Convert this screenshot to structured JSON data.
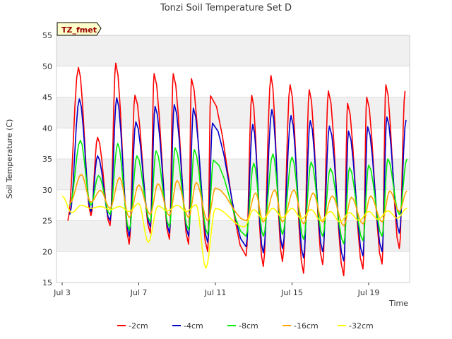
{
  "chart_data": {
    "type": "line",
    "title": "Tonzi Soil Temperature Set D",
    "xlabel": "Time",
    "ylabel": "Soil Temperature (C)",
    "ylim": [
      15,
      55
    ],
    "yticks": [
      15,
      20,
      25,
      30,
      35,
      40,
      45,
      50,
      55
    ],
    "xlim_days": [
      3,
      21
    ],
    "xticks": [
      {
        "label": "Jul 3",
        "day": 3
      },
      {
        "label": "Jul 7",
        "day": 7
      },
      {
        "label": "Jul 11",
        "day": 11
      },
      {
        "label": "Jul 15",
        "day": 15
      },
      {
        "label": "Jul 19",
        "day": 19
      }
    ],
    "grid": "horizontal bands",
    "legend_placement": "bottom",
    "annotation": "TZ_fmet",
    "series": [
      {
        "name": "-2cm",
        "color": "#ff0000",
        "peaks": [
          [
            3.85,
            49.8
          ],
          [
            4.85,
            38.5
          ],
          [
            5.8,
            50.5
          ],
          [
            6.8,
            45.3
          ],
          [
            7.8,
            48.8
          ],
          [
            8.8,
            48.8
          ],
          [
            9.75,
            48.0
          ],
          [
            10.75,
            45.2
          ],
          [
            12.9,
            45.3
          ],
          [
            13.9,
            48.5
          ],
          [
            14.9,
            47.0
          ],
          [
            15.9,
            46.2
          ],
          [
            16.9,
            46.0
          ],
          [
            17.9,
            44.0
          ],
          [
            18.9,
            45.0
          ],
          [
            19.9,
            47.0
          ],
          [
            20.9,
            46.0
          ]
        ],
        "troughs": [
          [
            3.3,
            25.0
          ],
          [
            4.5,
            25.8
          ],
          [
            5.5,
            24.2
          ],
          [
            6.5,
            21.2
          ],
          [
            7.6,
            23.0
          ],
          [
            8.6,
            22.0
          ],
          [
            9.6,
            21.2
          ],
          [
            10.6,
            20.0
          ],
          [
            12.6,
            19.3
          ],
          [
            13.5,
            17.6
          ],
          [
            14.5,
            18.4
          ],
          [
            15.6,
            16.5
          ],
          [
            16.6,
            17.9
          ],
          [
            17.7,
            16.1
          ],
          [
            18.7,
            17.2
          ],
          [
            19.7,
            18.0
          ],
          [
            20.6,
            20.5
          ]
        ]
      },
      {
        "name": "-4cm",
        "color": "#0000cc",
        "peaks": [
          [
            3.9,
            44.7
          ],
          [
            4.85,
            35.5
          ],
          [
            5.85,
            44.9
          ],
          [
            6.85,
            41.0
          ],
          [
            7.85,
            43.5
          ],
          [
            8.85,
            43.8
          ],
          [
            9.85,
            43.2
          ],
          [
            10.85,
            40.8
          ],
          [
            12.95,
            40.6
          ],
          [
            13.95,
            43.0
          ],
          [
            14.95,
            42.0
          ],
          [
            15.95,
            41.2
          ],
          [
            16.95,
            40.3
          ],
          [
            17.95,
            39.5
          ],
          [
            18.95,
            40.2
          ],
          [
            19.95,
            41.8
          ],
          [
            20.95,
            41.3
          ]
        ],
        "troughs": [
          [
            3.4,
            26.0
          ],
          [
            4.5,
            26.5
          ],
          [
            5.5,
            25.0
          ],
          [
            6.5,
            22.5
          ],
          [
            7.6,
            24.0
          ],
          [
            8.6,
            23.0
          ],
          [
            9.6,
            22.5
          ],
          [
            10.6,
            21.5
          ],
          [
            12.6,
            20.8
          ],
          [
            13.5,
            19.8
          ],
          [
            14.5,
            20.5
          ],
          [
            15.6,
            19.0
          ],
          [
            16.6,
            20.0
          ],
          [
            17.7,
            18.5
          ],
          [
            18.7,
            19.3
          ],
          [
            19.7,
            20.0
          ],
          [
            20.6,
            23.0
          ]
        ]
      },
      {
        "name": "-8cm",
        "color": "#00ee00",
        "peaks": [
          [
            3.95,
            38.0
          ],
          [
            4.9,
            32.3
          ],
          [
            5.9,
            37.5
          ],
          [
            6.9,
            35.5
          ],
          [
            7.9,
            36.3
          ],
          [
            8.9,
            36.8
          ],
          [
            9.9,
            36.5
          ],
          [
            10.9,
            34.8
          ],
          [
            13.0,
            34.3
          ],
          [
            14.0,
            35.8
          ],
          [
            15.0,
            35.3
          ],
          [
            16.0,
            34.5
          ],
          [
            17.0,
            33.5
          ],
          [
            18.0,
            33.6
          ],
          [
            19.0,
            34.0
          ],
          [
            20.0,
            35.0
          ],
          [
            21.0,
            35.0
          ]
        ],
        "troughs": [
          [
            3.4,
            27.5
          ],
          [
            4.5,
            27.5
          ],
          [
            5.5,
            26.0
          ],
          [
            6.5,
            23.5
          ],
          [
            7.6,
            24.8
          ],
          [
            8.6,
            24.0
          ],
          [
            9.6,
            23.5
          ],
          [
            10.6,
            22.8
          ],
          [
            12.6,
            22.5
          ],
          [
            13.5,
            22.5
          ],
          [
            14.5,
            22.8
          ],
          [
            15.6,
            22.0
          ],
          [
            16.6,
            22.5
          ],
          [
            17.7,
            21.3
          ],
          [
            18.7,
            21.8
          ],
          [
            19.7,
            22.5
          ],
          [
            20.6,
            26.0
          ]
        ]
      },
      {
        "name": "-16cm",
        "color": "#ffa500",
        "peaks": [
          [
            4.0,
            32.5
          ],
          [
            5.0,
            29.9
          ],
          [
            6.0,
            32.0
          ],
          [
            7.0,
            30.8
          ],
          [
            8.0,
            31.0
          ],
          [
            9.0,
            31.5
          ],
          [
            10.0,
            31.2
          ],
          [
            11.0,
            30.3
          ],
          [
            13.1,
            29.5
          ],
          [
            14.1,
            30.0
          ],
          [
            15.1,
            30.0
          ],
          [
            16.1,
            29.5
          ],
          [
            17.1,
            29.0
          ],
          [
            18.1,
            28.8
          ],
          [
            19.1,
            29.0
          ],
          [
            20.1,
            29.8
          ],
          [
            21.0,
            29.8
          ]
        ],
        "troughs": [
          [
            3.4,
            27.8
          ],
          [
            4.5,
            28.0
          ],
          [
            5.5,
            27.0
          ],
          [
            6.5,
            25.5
          ],
          [
            7.6,
            26.0
          ],
          [
            8.6,
            25.8
          ],
          [
            9.6,
            25.5
          ],
          [
            10.6,
            25.0
          ],
          [
            12.6,
            25.0
          ],
          [
            13.5,
            24.8
          ],
          [
            14.5,
            24.8
          ],
          [
            15.6,
            24.5
          ],
          [
            16.6,
            24.8
          ],
          [
            17.7,
            24.2
          ],
          [
            18.7,
            24.5
          ],
          [
            19.7,
            24.8
          ],
          [
            20.6,
            26.5
          ]
        ]
      },
      {
        "name": "-32cm",
        "color": "#ffff00",
        "peaks": [
          [
            3.0,
            29.0
          ],
          [
            4.0,
            27.5
          ],
          [
            5.0,
            27.3
          ],
          [
            6.0,
            27.3
          ],
          [
            7.0,
            27.8
          ],
          [
            8.0,
            27.4
          ],
          [
            9.0,
            27.5
          ],
          [
            10.0,
            27.6
          ],
          [
            11.0,
            27.0
          ],
          [
            13.0,
            26.8
          ],
          [
            14.0,
            27.0
          ],
          [
            15.0,
            27.0
          ],
          [
            16.0,
            26.8
          ],
          [
            17.0,
            26.5
          ],
          [
            18.0,
            26.3
          ],
          [
            19.0,
            26.5
          ],
          [
            20.0,
            26.6
          ],
          [
            21.0,
            27.0
          ]
        ],
        "troughs": [
          [
            3.5,
            26.3
          ],
          [
            4.5,
            27.0
          ],
          [
            5.5,
            26.8
          ],
          [
            6.5,
            26.5
          ],
          [
            7.5,
            21.5
          ],
          [
            8.5,
            26.6
          ],
          [
            9.5,
            26.5
          ],
          [
            10.5,
            17.3
          ],
          [
            12.5,
            24.0
          ],
          [
            13.5,
            25.3
          ],
          [
            14.5,
            25.5
          ],
          [
            15.5,
            25.3
          ],
          [
            16.5,
            25.0
          ],
          [
            17.5,
            24.8
          ],
          [
            18.5,
            25.0
          ],
          [
            19.5,
            25.2
          ],
          [
            20.5,
            25.4
          ]
        ]
      }
    ]
  }
}
